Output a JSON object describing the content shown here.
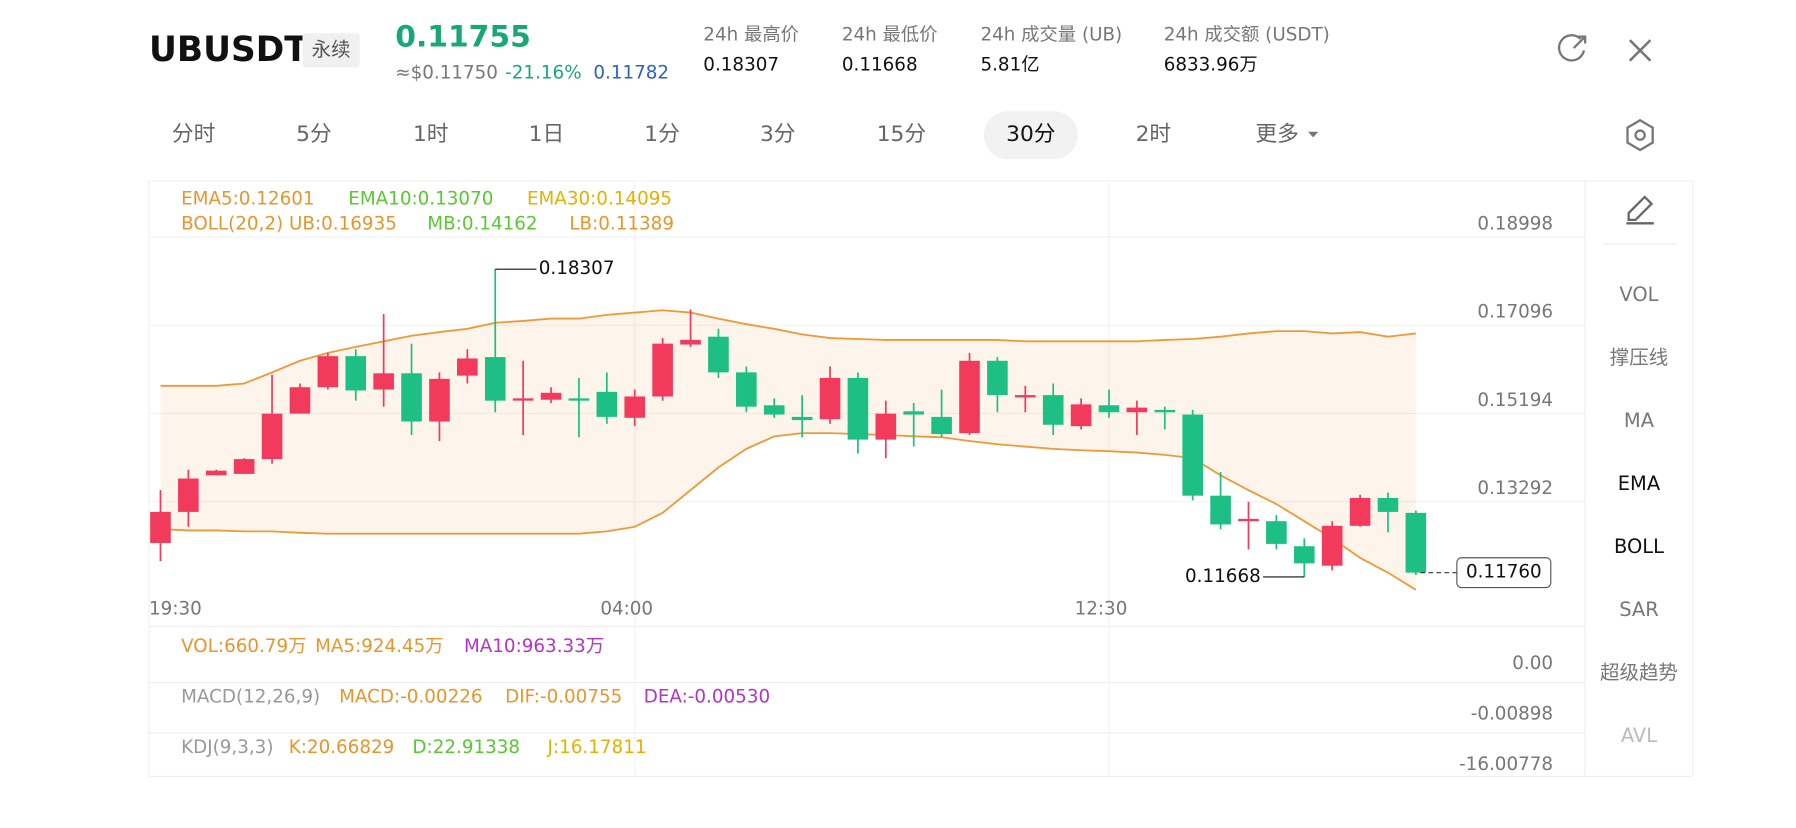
{
  "header": {
    "symbol": "UBUSDT",
    "tag": "永续",
    "price": "0.11755",
    "usd_price": "≈$0.11750",
    "change": "-21.16%",
    "mark_price": "0.11782",
    "stats": [
      {
        "label": "24h 最高价",
        "value": "0.18307"
      },
      {
        "label": "24h 最低价",
        "value": "0.11668"
      },
      {
        "label": "24h 成交量 (UB)",
        "value": "5.81亿"
      },
      {
        "label": "24h 成交额 (USDT)",
        "value": "6833.96万"
      }
    ]
  },
  "tabs": [
    "分时",
    "5分",
    "1时",
    "1日",
    "1分",
    "3分",
    "15分",
    "30分",
    "2时",
    "更多"
  ],
  "active_tab": 7,
  "side_menu": [
    "VOL",
    "撑压线",
    "MA",
    "EMA",
    "BOLL",
    "SAR",
    "超级趋势",
    "AVL"
  ],
  "side_menu_active": [
    3,
    4
  ],
  "indicators": {
    "ema": [
      "EMA5:0.12601",
      "EMA10:0.13070",
      "EMA30:0.14095"
    ],
    "boll": [
      "BOLL(20,2) UB:0.16935",
      "MB:0.14162",
      "LB:0.11389"
    ],
    "vol": [
      "VOL:660.79万",
      "MA5:924.45万",
      "MA10:963.33万"
    ],
    "macd": [
      "MACD(12,26,9)",
      "MACD:-0.00226",
      "DIF:-0.00755",
      "DEA:-0.00530"
    ],
    "kdj": [
      "KDJ(9,3,3)",
      "K:20.66829",
      "D:22.91338",
      "J:16.17811"
    ]
  },
  "lower_axis_labels": [
    "0.00",
    "-0.00898",
    "-16.00778"
  ],
  "chart_data": {
    "type": "candlestick",
    "categories": [
      "19:30",
      null,
      null,
      null,
      null,
      null,
      null,
      null,
      null,
      null,
      null,
      null,
      null,
      null,
      null,
      null,
      null,
      "04:00",
      null,
      null,
      null,
      null,
      null,
      null,
      null,
      null,
      null,
      null,
      null,
      null,
      null,
      null,
      null,
      null,
      "12:30",
      null,
      null,
      null,
      null,
      null,
      null,
      null,
      null,
      null,
      null,
      null
    ],
    "open": [
      0.124,
      0.1307,
      0.1386,
      0.1389,
      0.1421,
      0.1519,
      0.1576,
      0.1643,
      0.1571,
      0.1606,
      0.1502,
      0.1601,
      0.1641,
      0.1547,
      0.1549,
      0.1552,
      0.1566,
      0.151,
      0.1556,
      0.1668,
      0.1685,
      0.1608,
      0.1537,
      0.1512,
      0.1507,
      0.1596,
      0.1463,
      0.1524,
      0.1512,
      0.1477,
      0.1633,
      0.1554,
      0.1559,
      0.1492,
      0.1537,
      0.1522,
      0.1527,
      0.1517,
      0.1342,
      0.1287,
      0.1287,
      0.1233,
      0.1191,
      0.1277,
      0.1337,
      0.1305
    ],
    "high": [
      0.1354,
      0.1398,
      0.1398,
      0.1423,
      0.1603,
      0.1584,
      0.165,
      0.1658,
      0.1734,
      0.167,
      0.1608,
      0.1658,
      0.18307,
      0.1633,
      0.1576,
      0.1596,
      0.1608,
      0.1571,
      0.1682,
      0.1744,
      0.1702,
      0.1621,
      0.1552,
      0.1559,
      0.1621,
      0.1608,
      0.1547,
      0.1542,
      0.1571,
      0.165,
      0.1641,
      0.1579,
      0.1584,
      0.1552,
      0.1571,
      0.1547,
      0.1534,
      0.1527,
      0.1393,
      0.1329,
      0.13,
      0.125,
      0.1287,
      0.1344,
      0.1349,
      0.131
    ],
    "low": [
      0.1201,
      0.1275,
      0.1386,
      0.1389,
      0.1411,
      0.1519,
      0.1571,
      0.1547,
      0.1534,
      0.1473,
      0.146,
      0.1584,
      0.1522,
      0.1473,
      0.1542,
      0.1468,
      0.1497,
      0.1492,
      0.1547,
      0.1663,
      0.1596,
      0.1522,
      0.151,
      0.1468,
      0.1497,
      0.1433,
      0.1423,
      0.1448,
      0.1468,
      0.1473,
      0.1522,
      0.1522,
      0.1473,
      0.1485,
      0.151,
      0.1473,
      0.1485,
      0.1332,
      0.127,
      0.1226,
      0.1226,
      0.11668,
      0.1181,
      0.1275,
      0.1263,
      0.1171
    ],
    "close": [
      0.1307,
      0.1379,
      0.1396,
      0.1421,
      0.1519,
      0.1576,
      0.1643,
      0.1569,
      0.1606,
      0.1502,
      0.1594,
      0.1638,
      0.1547,
      0.1552,
      0.1564,
      0.1547,
      0.1512,
      0.1556,
      0.167,
      0.1678,
      0.1608,
      0.1534,
      0.1517,
      0.1505,
      0.1596,
      0.1463,
      0.1519,
      0.1517,
      0.1475,
      0.1633,
      0.1559,
      0.1559,
      0.1495,
      0.1539,
      0.1522,
      0.1532,
      0.1522,
      0.1342,
      0.128,
      0.1292,
      0.1238,
      0.1196,
      0.1277,
      0.1337,
      0.1307,
      0.1176
    ],
    "boll_upper": [
      0.1579,
      0.1579,
      0.1579,
      0.1584,
      0.1608,
      0.1633,
      0.165,
      0.1663,
      0.1675,
      0.1687,
      0.1695,
      0.1702,
      0.1715,
      0.1719,
      0.1724,
      0.1724,
      0.1732,
      0.1737,
      0.1742,
      0.1737,
      0.1724,
      0.1712,
      0.1702,
      0.169,
      0.1682,
      0.168,
      0.1678,
      0.1678,
      0.1678,
      0.1678,
      0.1678,
      0.1675,
      0.1675,
      0.1675,
      0.1675,
      0.1675,
      0.1678,
      0.168,
      0.1685,
      0.1692,
      0.1697,
      0.1697,
      0.1692,
      0.1695,
      0.1685,
      0.1692
    ],
    "boll_lower": [
      0.127,
      0.1267,
      0.1267,
      0.1265,
      0.1265,
      0.1262,
      0.126,
      0.126,
      0.126,
      0.126,
      0.126,
      0.126,
      0.126,
      0.126,
      0.126,
      0.126,
      0.1265,
      0.1275,
      0.1305,
      0.1354,
      0.1403,
      0.1443,
      0.147,
      0.1477,
      0.1477,
      0.1475,
      0.1473,
      0.147,
      0.1468,
      0.146,
      0.1453,
      0.1448,
      0.1443,
      0.144,
      0.1438,
      0.1435,
      0.143,
      0.1423,
      0.1386,
      0.1354,
      0.1324,
      0.1287,
      0.125,
      0.1208,
      0.1176,
      0.1139
    ],
    "up_color": "#f23b5c",
    "down_color": "#1dbf84",
    "band_color": "#ee9a3a",
    "ylim": [
      0.1139,
      0.2016
    ],
    "yticks": [
      0.18998,
      0.17096,
      0.15194,
      0.13292
    ],
    "grid": true,
    "high_label": "0.18307",
    "low_label": "0.11668",
    "last_label": "0.11760"
  }
}
